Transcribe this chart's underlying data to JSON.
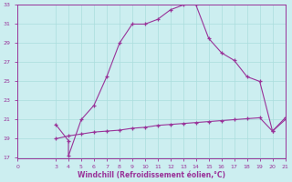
{
  "xlabel": "Windchill (Refroidissement éolien,°C)",
  "bg_color": "#cceef0",
  "line_color": "#993399",
  "grid_color": "#aadddd",
  "x_upper": [
    3,
    4,
    4,
    5,
    6,
    7,
    8,
    9,
    10,
    11,
    12,
    13,
    14,
    15,
    16,
    17,
    18,
    19,
    20,
    21
  ],
  "y_upper": [
    20.5,
    18.8,
    17.2,
    21.0,
    22.5,
    25.5,
    29.0,
    31.0,
    31.0,
    31.5,
    32.5,
    33.0,
    33.0,
    29.5,
    28.0,
    27.2,
    25.5,
    25.0,
    19.8,
    21.0
  ],
  "x_lower": [
    3,
    4,
    5,
    6,
    7,
    8,
    9,
    10,
    11,
    12,
    13,
    14,
    15,
    16,
    17,
    18,
    19,
    20,
    21
  ],
  "y_lower": [
    19.0,
    19.3,
    19.5,
    19.7,
    19.8,
    19.9,
    20.1,
    20.2,
    20.4,
    20.5,
    20.6,
    20.7,
    20.8,
    20.9,
    21.0,
    21.1,
    21.2,
    19.8,
    21.2
  ],
  "xlim": [
    0,
    21
  ],
  "ylim": [
    17,
    33
  ],
  "yticks": [
    17,
    19,
    21,
    23,
    25,
    27,
    29,
    31,
    33
  ],
  "xticks": [
    0,
    3,
    4,
    5,
    6,
    7,
    8,
    9,
    10,
    11,
    12,
    13,
    14,
    15,
    16,
    17,
    18,
    19,
    20,
    21
  ]
}
